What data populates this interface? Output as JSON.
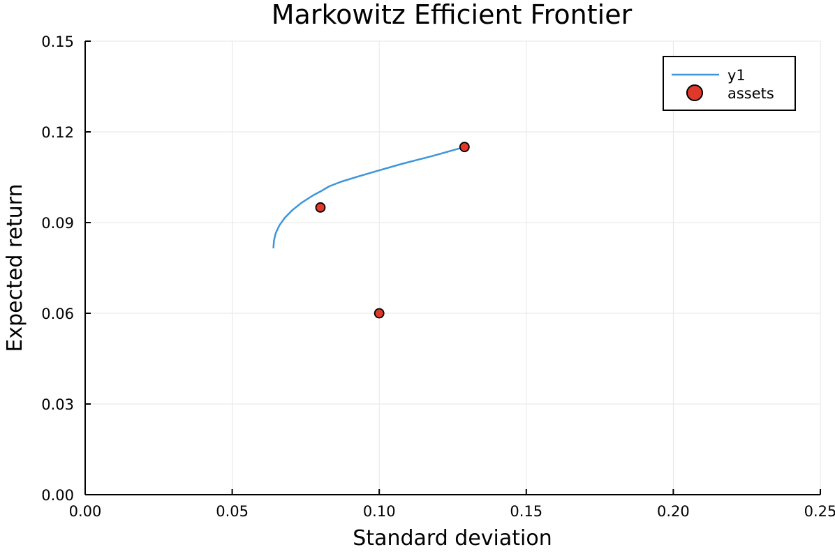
{
  "chart_data": {
    "type": "scatter",
    "title": "Markowitz Efficient Frontier",
    "xlabel": "Standard deviation",
    "ylabel": "Expected return",
    "xlim": [
      0.0,
      0.25
    ],
    "ylim": [
      0.0,
      0.15
    ],
    "x_ticks": [
      0.0,
      0.05,
      0.1,
      0.15,
      0.2,
      0.25
    ],
    "x_tick_labels": [
      "0.00",
      "0.05",
      "0.10",
      "0.15",
      "0.20",
      "0.25"
    ],
    "y_ticks": [
      0.0,
      0.03,
      0.06,
      0.09,
      0.12,
      0.15
    ],
    "y_tick_labels": [
      "0.00",
      "0.03",
      "0.06",
      "0.09",
      "0.12",
      "0.15"
    ],
    "grid": true,
    "legend_position": "top-right",
    "series": [
      {
        "name": "y1",
        "kind": "line",
        "color": "#3c96dc",
        "points": [
          [
            0.064,
            0.0815
          ],
          [
            0.0642,
            0.084
          ],
          [
            0.0648,
            0.0865
          ],
          [
            0.066,
            0.089
          ],
          [
            0.0678,
            0.0915
          ],
          [
            0.0703,
            0.094
          ],
          [
            0.0735,
            0.0965
          ],
          [
            0.0775,
            0.099
          ],
          [
            0.08,
            0.1003
          ],
          [
            0.083,
            0.102
          ],
          [
            0.087,
            0.1035
          ],
          [
            0.092,
            0.105
          ],
          [
            0.099,
            0.107
          ],
          [
            0.108,
            0.1095
          ],
          [
            0.118,
            0.112
          ],
          [
            0.129,
            0.115
          ]
        ]
      },
      {
        "name": "assets",
        "kind": "scatter",
        "color": "#e0382b",
        "points": [
          [
            0.08,
            0.095
          ],
          [
            0.1,
            0.06
          ],
          [
            0.129,
            0.115
          ]
        ]
      }
    ]
  }
}
